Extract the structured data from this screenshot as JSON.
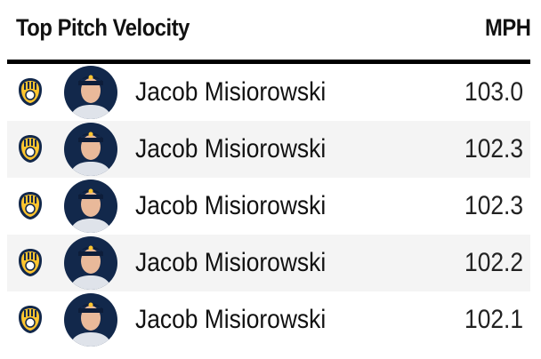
{
  "header": {
    "title": "Top Pitch Velocity",
    "column": "MPH"
  },
  "table": {
    "rows": [
      {
        "name": "Jacob Misiorowski",
        "mph": "103.0"
      },
      {
        "name": "Jacob Misiorowski",
        "mph": "102.3"
      },
      {
        "name": "Jacob Misiorowski",
        "mph": "102.3"
      },
      {
        "name": "Jacob Misiorowski",
        "mph": "102.2"
      },
      {
        "name": "Jacob Misiorowski",
        "mph": "102.1"
      }
    ]
  }
}
